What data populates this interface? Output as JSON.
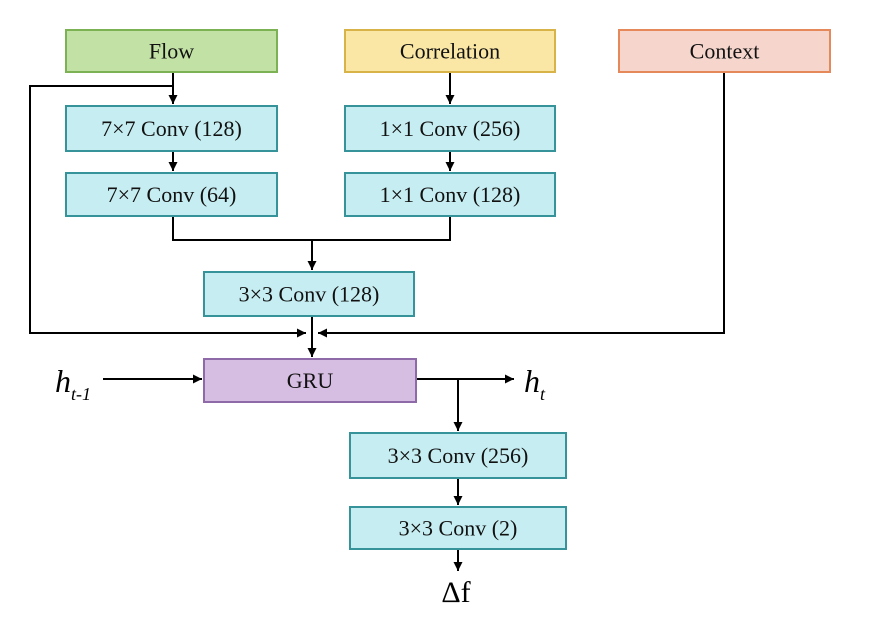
{
  "inputs": {
    "flow": "Flow",
    "correlation": "Correlation",
    "context": "Context"
  },
  "flow_branch": {
    "conv1": "7×7 Conv (128)",
    "conv2": "7×7 Conv (64)"
  },
  "corr_branch": {
    "conv1": "1×1 Conv (256)",
    "conv2": "1×1 Conv (128)"
  },
  "merge_conv": "3×3 Conv (128)",
  "gru": "GRU",
  "hidden_in": {
    "base": "h",
    "sub": "t-1"
  },
  "hidden_out": {
    "base": "h",
    "sub": "t"
  },
  "head": {
    "conv1": "3×3 Conv (256)",
    "conv2": "3×3 Conv (2)"
  },
  "output": "Δf",
  "colors": {
    "flow_fill": "#c2e1a5",
    "flow_stroke": "#7cb154",
    "corr_fill": "#fae7a5",
    "corr_stroke": "#d8b347",
    "context_fill": "#f5d5cc",
    "context_stroke": "#e6895a",
    "conv_fill": "#c6edf1",
    "conv_stroke": "#36939a",
    "gru_fill": "#d6bde2",
    "gru_stroke": "#8f6aa8",
    "line": "#000000"
  }
}
